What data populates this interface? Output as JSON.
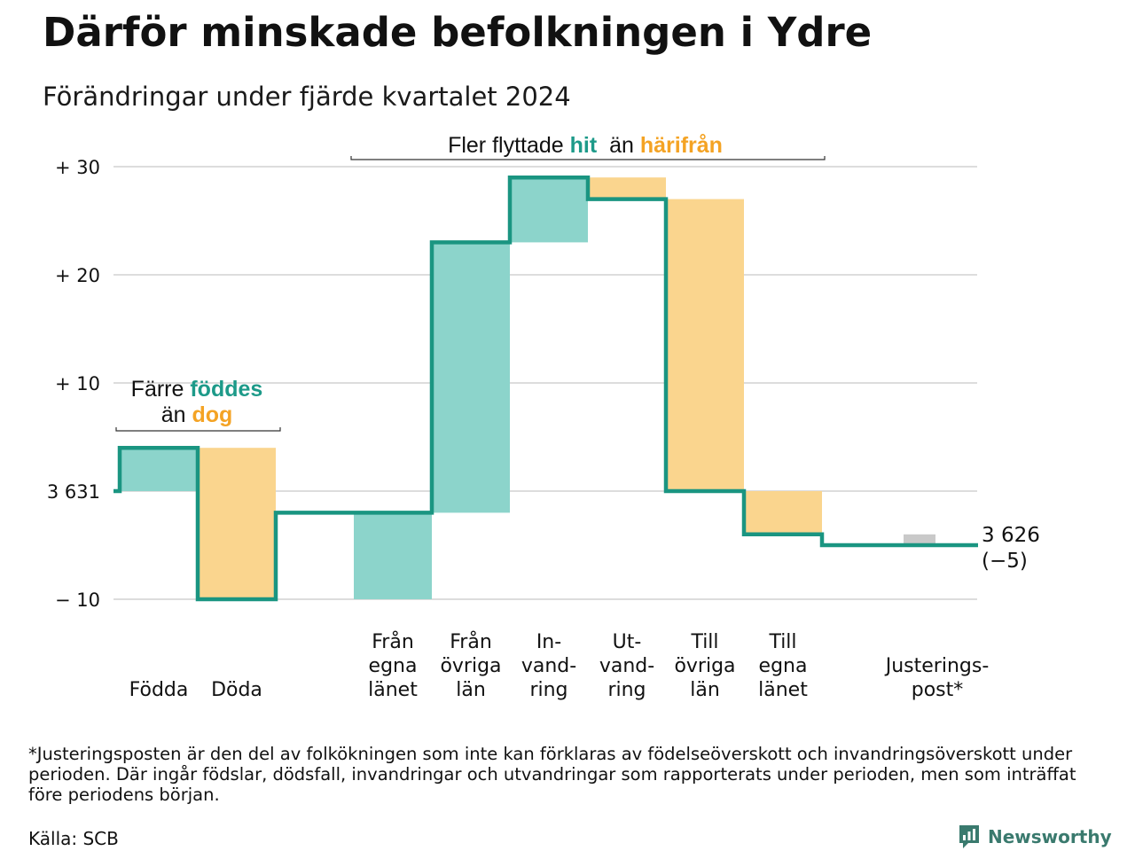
{
  "title": "Därför minskade befolkningen i Ydre",
  "subtitle": "Förändringar under fjärde kvartalet 2024",
  "colors": {
    "increase": "#8cd4cb",
    "decrease": "#fad58e",
    "adjustment": "#c9c9c9",
    "line": "#1a9581",
    "grid": "#dddddd",
    "accent_green": "#1d9a89",
    "accent_orange": "#f4a324"
  },
  "annotations": {
    "births": {
      "pre": "Färre",
      "a": "föddes",
      "mid": "än",
      "b": "dog"
    },
    "moves": {
      "pre": "Fler flyttade",
      "a": "hit",
      "mid": "än",
      "b": "härifrån"
    }
  },
  "end_label": {
    "value": "3 626",
    "change": "(−5)"
  },
  "footnote": "*Justeringsposten är den del av folkökningen som inte kan förklaras av födelseöverskott och invandringsöverskott under perioden. Där ingår födslar, dödsfall, invandringar och utvandringar som rapporterats under perioden, men som inträffat före periodens början.",
  "source": "Källa: SCB",
  "brand": "Newsworthy",
  "chart_data": {
    "type": "waterfall",
    "start_value": 3631,
    "end_value": 3626,
    "net_change": -5,
    "y_ticks": [
      {
        "value": 30,
        "label": "+ 30"
      },
      {
        "value": 20,
        "label": "+ 20"
      },
      {
        "value": 10,
        "label": "+ 10"
      },
      {
        "value": 0,
        "label": "3 631"
      },
      {
        "value": -10,
        "label": "− 10"
      }
    ],
    "ylim": [
      -10,
      30
    ],
    "grid": true,
    "steps": [
      {
        "slot": 0,
        "label": [
          "Födda"
        ],
        "delta": 4,
        "kind": "increase"
      },
      {
        "slot": 1,
        "label": [
          "Döda"
        ],
        "delta": -14,
        "kind": "decrease"
      },
      {
        "slot": 3,
        "label": [
          "Från",
          "egna",
          "länet"
        ],
        "delta": 8,
        "kind": "increase"
      },
      {
        "slot": 4,
        "label": [
          "Från",
          "övriga",
          "län"
        ],
        "delta": 25,
        "kind": "increase"
      },
      {
        "slot": 5,
        "label": [
          "In-",
          "vand-",
          "ring"
        ],
        "delta": 6,
        "kind": "increase"
      },
      {
        "slot": 6,
        "label": [
          "Ut-",
          "vand-",
          "ring"
        ],
        "delta": -2,
        "kind": "decrease"
      },
      {
        "slot": 7,
        "label": [
          "Till",
          "övriga",
          "län"
        ],
        "delta": -27,
        "kind": "decrease"
      },
      {
        "slot": 8,
        "label": [
          "Till",
          "egna",
          "länet"
        ],
        "delta": -4,
        "kind": "decrease"
      },
      {
        "slot": 10,
        "label": [
          "Justerings-",
          "post*"
        ],
        "delta": -1,
        "kind": "adjustment"
      }
    ]
  }
}
